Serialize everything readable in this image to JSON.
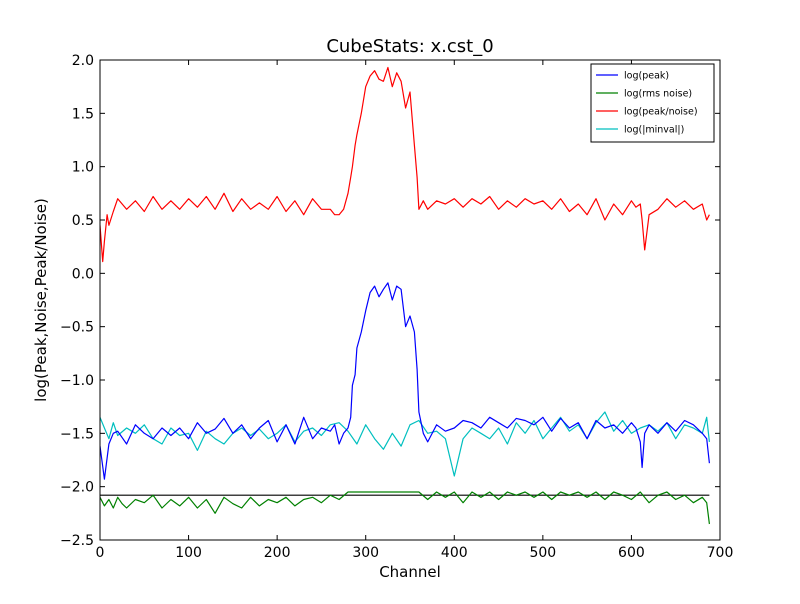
{
  "chart_data": {
    "type": "line",
    "title": "CubeStats: x.cst_0",
    "xlabel": "Channel",
    "ylabel": "log(Peak,Noise,Peak/Noise)",
    "xlim": [
      0,
      700
    ],
    "ylim": [
      -2.5,
      2.0
    ],
    "xticks": [
      0,
      100,
      200,
      300,
      400,
      500,
      600,
      700
    ],
    "yticks": [
      -2.5,
      -2.0,
      -1.5,
      -1.0,
      -0.5,
      0.0,
      0.5,
      1.0,
      1.5,
      2.0
    ],
    "xtick_labels": [
      "0",
      "100",
      "200",
      "300",
      "400",
      "500",
      "600",
      "700"
    ],
    "ytick_labels": [
      "−2.5",
      "−2.0",
      "−1.5",
      "−1.0",
      "−0.5",
      "0.0",
      "0.5",
      "1.0",
      "1.5",
      "2.0"
    ],
    "grid": false,
    "legend_position": "top-right",
    "hline": {
      "y": -2.08,
      "color": "#000000"
    },
    "series": [
      {
        "name": "log(peak)",
        "color": "#0000ff",
        "x": [
          0,
          5,
          10,
          15,
          20,
          30,
          40,
          50,
          60,
          70,
          80,
          90,
          100,
          110,
          120,
          130,
          140,
          150,
          160,
          170,
          180,
          190,
          200,
          210,
          220,
          230,
          240,
          250,
          260,
          265,
          270,
          275,
          280,
          283,
          285,
          288,
          290,
          295,
          300,
          305,
          310,
          315,
          320,
          325,
          330,
          335,
          340,
          345,
          350,
          355,
          358,
          360,
          365,
          370,
          380,
          390,
          400,
          410,
          420,
          430,
          440,
          450,
          460,
          470,
          480,
          490,
          500,
          510,
          520,
          530,
          540,
          550,
          560,
          570,
          580,
          590,
          600,
          605,
          610,
          612,
          615,
          620,
          630,
          640,
          650,
          660,
          670,
          680,
          685,
          688
        ],
        "y": [
          -1.62,
          -1.93,
          -1.6,
          -1.5,
          -1.48,
          -1.6,
          -1.42,
          -1.5,
          -1.55,
          -1.45,
          -1.52,
          -1.45,
          -1.55,
          -1.4,
          -1.5,
          -1.46,
          -1.36,
          -1.5,
          -1.42,
          -1.55,
          -1.45,
          -1.38,
          -1.58,
          -1.42,
          -1.6,
          -1.35,
          -1.55,
          -1.45,
          -1.48,
          -1.42,
          -1.6,
          -1.5,
          -1.45,
          -1.35,
          -1.05,
          -0.95,
          -0.7,
          -0.55,
          -0.35,
          -0.18,
          -0.12,
          -0.22,
          -0.15,
          -0.09,
          -0.25,
          -0.12,
          -0.15,
          -0.5,
          -0.4,
          -0.55,
          -0.9,
          -1.3,
          -1.5,
          -1.58,
          -1.42,
          -1.48,
          -1.45,
          -1.38,
          -1.4,
          -1.45,
          -1.35,
          -1.4,
          -1.45,
          -1.36,
          -1.38,
          -1.42,
          -1.35,
          -1.48,
          -1.36,
          -1.45,
          -1.4,
          -1.55,
          -1.38,
          -1.45,
          -1.42,
          -1.5,
          -1.4,
          -1.45,
          -1.58,
          -1.82,
          -1.5,
          -1.42,
          -1.5,
          -1.4,
          -1.48,
          -1.38,
          -1.42,
          -1.5,
          -1.55,
          -1.78
        ]
      },
      {
        "name": "log(rms noise)",
        "color": "#008000",
        "x": [
          0,
          5,
          10,
          15,
          20,
          25,
          30,
          40,
          50,
          60,
          70,
          80,
          90,
          100,
          110,
          120,
          130,
          140,
          150,
          160,
          170,
          180,
          190,
          200,
          210,
          220,
          230,
          240,
          250,
          260,
          270,
          280,
          290,
          300,
          310,
          320,
          330,
          340,
          350,
          360,
          370,
          380,
          390,
          400,
          410,
          420,
          430,
          440,
          450,
          460,
          470,
          480,
          490,
          500,
          510,
          520,
          530,
          540,
          550,
          560,
          570,
          580,
          590,
          600,
          610,
          620,
          630,
          640,
          650,
          660,
          670,
          680,
          685,
          688
        ],
        "y": [
          -2.1,
          -2.18,
          -2.12,
          -2.2,
          -2.1,
          -2.16,
          -2.2,
          -2.12,
          -2.15,
          -2.08,
          -2.2,
          -2.12,
          -2.18,
          -2.1,
          -2.2,
          -2.12,
          -2.25,
          -2.1,
          -2.16,
          -2.2,
          -2.1,
          -2.18,
          -2.12,
          -2.15,
          -2.1,
          -2.18,
          -2.12,
          -2.1,
          -2.15,
          -2.08,
          -2.12,
          -2.05,
          -2.05,
          -2.05,
          -2.05,
          -2.05,
          -2.05,
          -2.05,
          -2.05,
          -2.05,
          -2.12,
          -2.05,
          -2.1,
          -2.05,
          -2.15,
          -2.05,
          -2.1,
          -2.05,
          -2.12,
          -2.05,
          -2.08,
          -2.05,
          -2.1,
          -2.05,
          -2.12,
          -2.05,
          -2.08,
          -2.05,
          -2.1,
          -2.05,
          -2.12,
          -2.05,
          -2.08,
          -2.12,
          -2.05,
          -2.15,
          -2.08,
          -2.05,
          -2.12,
          -2.08,
          -2.15,
          -2.1,
          -2.15,
          -2.35
        ]
      },
      {
        "name": "log(peak/noise)",
        "color": "#ff0000",
        "x": [
          0,
          3,
          5,
          8,
          10,
          15,
          20,
          30,
          40,
          50,
          60,
          70,
          80,
          90,
          100,
          110,
          120,
          130,
          140,
          150,
          160,
          170,
          180,
          190,
          200,
          210,
          220,
          230,
          240,
          250,
          260,
          265,
          270,
          275,
          280,
          283,
          285,
          288,
          290,
          295,
          300,
          305,
          310,
          315,
          320,
          325,
          330,
          335,
          340,
          345,
          350,
          355,
          358,
          360,
          365,
          370,
          380,
          390,
          400,
          410,
          420,
          430,
          440,
          450,
          460,
          470,
          480,
          490,
          500,
          510,
          520,
          530,
          540,
          550,
          560,
          570,
          580,
          590,
          600,
          605,
          610,
          612,
          615,
          620,
          630,
          640,
          650,
          660,
          670,
          680,
          685,
          688
        ],
        "y": [
          0.45,
          0.11,
          0.3,
          0.55,
          0.45,
          0.58,
          0.7,
          0.6,
          0.68,
          0.58,
          0.72,
          0.6,
          0.68,
          0.6,
          0.7,
          0.62,
          0.72,
          0.6,
          0.75,
          0.58,
          0.7,
          0.6,
          0.66,
          0.6,
          0.72,
          0.58,
          0.68,
          0.55,
          0.7,
          0.6,
          0.6,
          0.55,
          0.55,
          0.6,
          0.75,
          0.9,
          1.0,
          1.2,
          1.3,
          1.5,
          1.75,
          1.85,
          1.9,
          1.82,
          1.8,
          1.93,
          1.75,
          1.88,
          1.8,
          1.55,
          1.7,
          1.2,
          0.9,
          0.6,
          0.68,
          0.6,
          0.68,
          0.65,
          0.7,
          0.62,
          0.7,
          0.65,
          0.72,
          0.6,
          0.68,
          0.62,
          0.7,
          0.65,
          0.68,
          0.6,
          0.7,
          0.58,
          0.65,
          0.55,
          0.7,
          0.5,
          0.65,
          0.55,
          0.68,
          0.62,
          0.65,
          0.5,
          0.22,
          0.55,
          0.6,
          0.7,
          0.62,
          0.68,
          0.6,
          0.65,
          0.5,
          0.55
        ]
      },
      {
        "name": "log(|minval|)",
        "color": "#00bfbf",
        "x": [
          0,
          5,
          10,
          15,
          20,
          30,
          40,
          50,
          60,
          70,
          80,
          90,
          100,
          110,
          120,
          130,
          140,
          150,
          160,
          170,
          180,
          190,
          200,
          210,
          220,
          230,
          240,
          250,
          260,
          270,
          280,
          290,
          300,
          310,
          320,
          330,
          340,
          350,
          360,
          370,
          380,
          390,
          400,
          410,
          420,
          430,
          440,
          450,
          460,
          470,
          480,
          490,
          500,
          510,
          520,
          530,
          540,
          550,
          560,
          570,
          580,
          590,
          600,
          610,
          620,
          630,
          640,
          650,
          660,
          670,
          680,
          685,
          688
        ],
        "y": [
          -1.35,
          -1.45,
          -1.55,
          -1.4,
          -1.52,
          -1.45,
          -1.5,
          -1.42,
          -1.55,
          -1.6,
          -1.45,
          -1.52,
          -1.5,
          -1.66,
          -1.48,
          -1.55,
          -1.6,
          -1.5,
          -1.45,
          -1.52,
          -1.46,
          -1.55,
          -1.5,
          -1.42,
          -1.58,
          -1.48,
          -1.45,
          -1.52,
          -1.42,
          -1.4,
          -1.48,
          -1.6,
          -1.42,
          -1.55,
          -1.65,
          -1.5,
          -1.62,
          -1.42,
          -1.38,
          -1.5,
          -1.48,
          -1.55,
          -1.9,
          -1.55,
          -1.45,
          -1.5,
          -1.55,
          -1.45,
          -1.6,
          -1.4,
          -1.5,
          -1.38,
          -1.55,
          -1.45,
          -1.35,
          -1.48,
          -1.42,
          -1.55,
          -1.4,
          -1.3,
          -1.48,
          -1.38,
          -1.5,
          -1.45,
          -1.42,
          -1.48,
          -1.4,
          -1.55,
          -1.42,
          -1.45,
          -1.5,
          -1.35,
          -1.58
        ]
      }
    ]
  }
}
